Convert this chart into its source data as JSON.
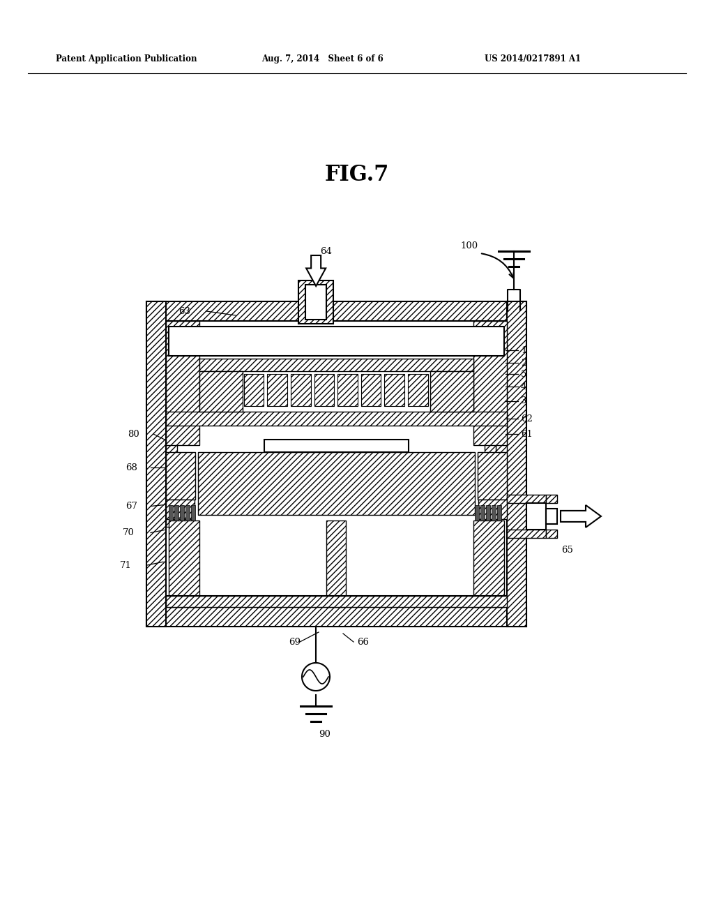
{
  "bg_color": "#ffffff",
  "header_left": "Patent Application Publication",
  "header_mid": "Aug. 7, 2014   Sheet 6 of 6",
  "header_right": "US 2014/0217891 A1",
  "fig_title": "FIG.7",
  "hatch": "////",
  "lw_main": 1.5,
  "lw_thin": 1.0,
  "label_fs": 9.5
}
